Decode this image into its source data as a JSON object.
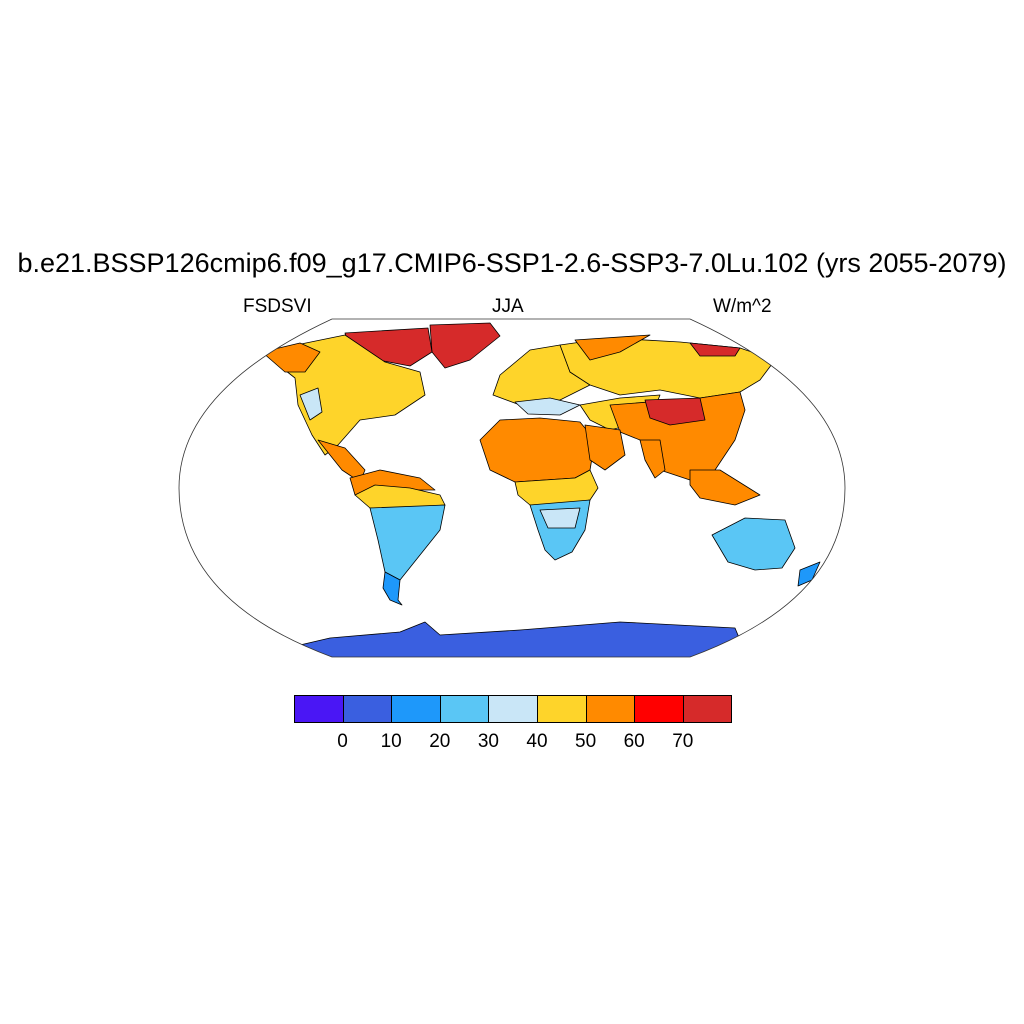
{
  "header": {
    "title": "b.e21.BSSP126cmip6.f09_g17.CMIP6-SSP1-2.6-SSP3-7.0Lu.102 (yrs 2055-2079)",
    "left_label": "FSDSVI",
    "center_label": "JJA",
    "right_label": "W/m^2"
  },
  "colorbar": {
    "colors": [
      "#4a16f5",
      "#3a5fe0",
      "#1e98fa",
      "#5ac6f5",
      "#c9e6f7",
      "#fed42a",
      "#ff8a00",
      "#ff0000",
      "#d62a2a"
    ],
    "labels": [
      "0",
      "10",
      "20",
      "30",
      "40",
      "50",
      "60",
      "70"
    ]
  },
  "map": {
    "projection": "Robinson",
    "ocean_color": "#ffffff",
    "coastline_color": "#000000"
  }
}
